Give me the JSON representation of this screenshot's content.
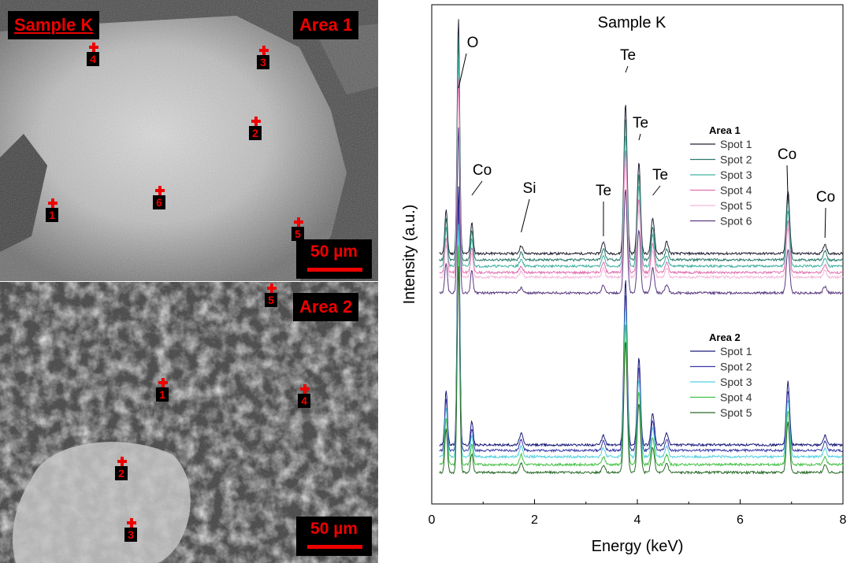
{
  "sem": {
    "sample_label": "Sample K",
    "scale_label": "50 µm",
    "area1": {
      "label": "Area 1",
      "spots": [
        "1",
        "2",
        "3",
        "4",
        "5",
        "6"
      ]
    },
    "area2": {
      "label": "Area 2",
      "spots": [
        "1",
        "2",
        "3",
        "4",
        "5"
      ]
    }
  },
  "chart_data": {
    "type": "line",
    "title": "Sample K",
    "xlabel": "Energy (keV)",
    "ylabel": "Intensity (a.u.)",
    "xlim": [
      0,
      8
    ],
    "xticks": [
      "0",
      "2",
      "4",
      "6",
      "8"
    ],
    "y_ticks_shown": false,
    "peak_labels": [
      {
        "label": "O",
        "x": 0.52
      },
      {
        "label": "Co",
        "x": 0.78
      },
      {
        "label": "Si",
        "x": 1.74
      },
      {
        "label": "Te",
        "x": 3.34
      },
      {
        "label": "Te",
        "x": 3.77
      },
      {
        "label": "Te",
        "x": 4.03
      },
      {
        "label": "Te",
        "x": 4.3
      },
      {
        "label": "Co",
        "x": 6.93
      },
      {
        "label": "Co",
        "x": 7.65
      }
    ],
    "peaks_keV": [
      0.28,
      0.52,
      0.78,
      1.74,
      3.34,
      3.77,
      4.03,
      4.3,
      4.57,
      6.93,
      7.65
    ],
    "groups": [
      {
        "name": "Area 1",
        "series": [
          {
            "name": "Spot 1",
            "color": "#222233"
          },
          {
            "name": "Spot 2",
            "color": "#2a7a6a"
          },
          {
            "name": "Spot 3",
            "color": "#40b0a0"
          },
          {
            "name": "Spot 4",
            "color": "#e070b0"
          },
          {
            "name": "Spot 5",
            "color": "#f4b8d8"
          },
          {
            "name": "Spot 6",
            "color": "#5a3a80"
          }
        ]
      },
      {
        "name": "Area 2",
        "series": [
          {
            "name": "Spot 1",
            "color": "#1a1a7a"
          },
          {
            "name": "Spot 2",
            "color": "#3838a8"
          },
          {
            "name": "Spot 3",
            "color": "#50d0e0"
          },
          {
            "name": "Spot 4",
            "color": "#40c040"
          },
          {
            "name": "Spot 5",
            "color": "#2a6a2a"
          }
        ]
      }
    ],
    "legend_placement": "right"
  }
}
